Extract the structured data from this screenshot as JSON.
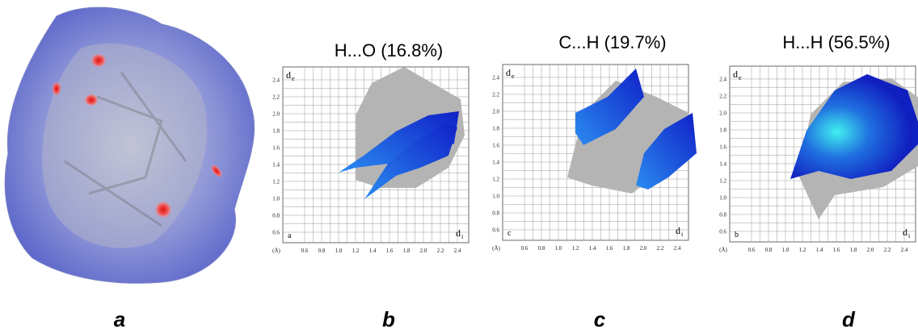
{
  "panels": [
    {
      "label": "a"
    },
    {
      "label": "b",
      "title": "H...O (16.8%)",
      "inner_label": "a",
      "y_label": "d",
      "y_label_sub": "e",
      "x_label": "d",
      "x_label_sub": "i",
      "unit": "(Å)",
      "yticks": [
        "0.6",
        "0.8",
        "1.0",
        "1.2",
        "1.4",
        "1.6",
        "1.8",
        "2.0",
        "2.2",
        "2.4"
      ],
      "xticks": [
        "0.6",
        "0.8",
        "1.0",
        "1.2",
        "1.4",
        "1.6",
        "1.8",
        "2.0",
        "2.2",
        "2.4"
      ]
    },
    {
      "label": "c",
      "title": "C...H (19.7%)",
      "inner_label": "c",
      "y_label": "d",
      "y_label_sub": "e",
      "x_label": "d",
      "x_label_sub": "i",
      "unit": "(Å)",
      "yticks": [
        "0.6",
        "0.8",
        "1.0",
        "1.2",
        "1.4",
        "1.6",
        "1.8",
        "2.0",
        "2.2",
        "2.4"
      ],
      "xticks": [
        "0.6",
        "0.8",
        "1.0",
        "1.2",
        "1.4",
        "1.6",
        "1.8",
        "2.0",
        "2.2",
        "2.4"
      ]
    },
    {
      "label": "d",
      "title": "H...H (56.5%)",
      "inner_label": "b",
      "y_label": "d",
      "y_label_sub": "e",
      "x_label": "d",
      "x_label_sub": "i",
      "unit": "(Å)",
      "yticks": [
        "0.6",
        "0.8",
        "1.0",
        "1.2",
        "1.4",
        "1.6",
        "1.8",
        "2.0",
        "2.2",
        "2.4"
      ],
      "xticks": [
        "0.6",
        "0.8",
        "1.0",
        "1.2",
        "1.4",
        "1.6",
        "1.8",
        "2.0",
        "2.2",
        "2.4"
      ]
    }
  ]
}
